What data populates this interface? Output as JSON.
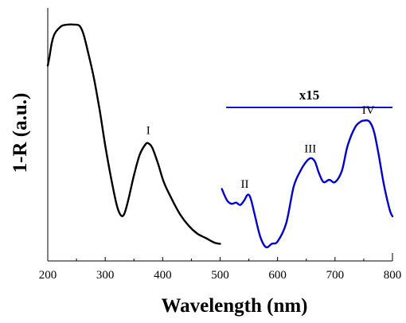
{
  "chart_data": {
    "type": "line",
    "title": "",
    "xlabel": "Wavelength (nm)",
    "ylabel": "1-R (a.u.)",
    "xlim": [
      200,
      800
    ],
    "ylim": [
      0,
      1
    ],
    "y_ticks_shown": false,
    "x_ticks": [
      200,
      300,
      400,
      500,
      600,
      700,
      800
    ],
    "x_tick_labels": [
      "200",
      "300",
      "400",
      "500",
      "600",
      "700",
      "800"
    ],
    "grid": false,
    "legend": "none",
    "series": [
      {
        "color": "#000000",
        "x": [
          200,
          203,
          207,
          212,
          218,
          225,
          235,
          245,
          255,
          262,
          270,
          280,
          290,
          300,
          310,
          320,
          327,
          333,
          340,
          350,
          360,
          370,
          375,
          382,
          392,
          402,
          415,
          430,
          445,
          460,
          475,
          490,
          500
        ],
        "y": [
          0.81,
          0.85,
          0.91,
          0.95,
          0.97,
          0.985,
          0.99,
          0.99,
          0.985,
          0.95,
          0.87,
          0.76,
          0.62,
          0.46,
          0.32,
          0.2,
          0.155,
          0.16,
          0.22,
          0.33,
          0.42,
          0.465,
          0.47,
          0.45,
          0.38,
          0.3,
          0.23,
          0.16,
          0.11,
          0.075,
          0.055,
          0.035,
          0.03
        ]
      },
      {
        "color": "#0000d0",
        "x": [
          503,
          512,
          520,
          528,
          535,
          542,
          548,
          553,
          560,
          570,
          580,
          590,
          600,
          615,
          628,
          640,
          650,
          658,
          665,
          672,
          680,
          690,
          700,
          712,
          722,
          735,
          745,
          752,
          760,
          768,
          776,
          785,
          795,
          800
        ],
        "y": [
          0.27,
          0.22,
          0.205,
          0.21,
          0.2,
          0.22,
          0.245,
          0.23,
          0.16,
          0.06,
          0.015,
          0.03,
          0.04,
          0.12,
          0.28,
          0.35,
          0.39,
          0.405,
          0.39,
          0.34,
          0.3,
          0.31,
          0.3,
          0.35,
          0.46,
          0.54,
          0.565,
          0.57,
          0.565,
          0.52,
          0.42,
          0.29,
          0.18,
          0.15
        ]
      }
    ],
    "scale_bar": {
      "label": "x15",
      "x_range": [
        505,
        800
      ],
      "y": 0.62,
      "color": "#0000d0"
    },
    "annotations": [
      {
        "text": "I",
        "x": 375,
        "y": 0.51
      },
      {
        "text": "II",
        "x": 543,
        "y": 0.275
      },
      {
        "text": "III",
        "x": 657,
        "y": 0.43
      },
      {
        "text": "IV",
        "x": 758,
        "y": 0.6
      }
    ]
  }
}
